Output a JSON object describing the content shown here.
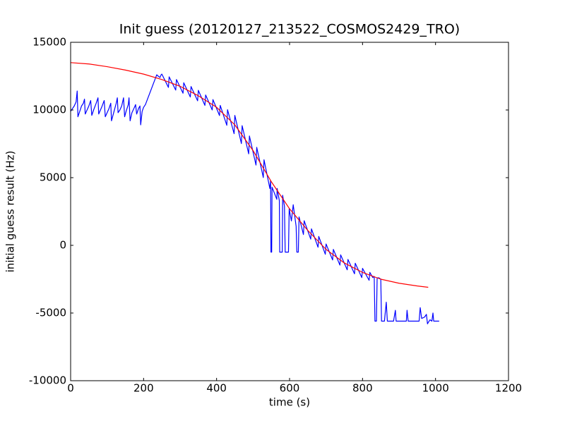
{
  "chart_data": {
    "type": "line",
    "title": "Init guess (20120127_213522_COSMOS2429_TRO)",
    "x_label": "time (s)",
    "y_label": "initial guess result (Hz)",
    "xlim": [
      0,
      1200
    ],
    "xticks": [
      0,
      200,
      400,
      600,
      800,
      1000,
      1200
    ],
    "ylim": [
      -10000,
      15000
    ],
    "yticks": [
      -10000,
      -5000,
      0,
      5000,
      10000,
      15000
    ],
    "series": [
      {
        "color": "#0000ff",
        "x": [
          0,
          5,
          10,
          15,
          18,
          20,
          25,
          30,
          35,
          38,
          40,
          45,
          50,
          55,
          58,
          63,
          70,
          75,
          77,
          85,
          92,
          95,
          100,
          105,
          110,
          112,
          118,
          125,
          128,
          130,
          135,
          140,
          145,
          148,
          152,
          158,
          160,
          163,
          168,
          175,
          178,
          181,
          186,
          190,
          192,
          196,
          200,
          205,
          236,
          240,
          245,
          248,
          250,
          268,
          270,
          288,
          290,
          308,
          310,
          328,
          330,
          348,
          350,
          368,
          370,
          388,
          390,
          408,
          410,
          428,
          430,
          448,
          450,
          468,
          470,
          488,
          490,
          508,
          510,
          528,
          530,
          546,
          548,
          549,
          551,
          552,
          565,
          566,
          572,
          573,
          580,
          581,
          586,
          588,
          597,
          599,
          605,
          610,
          618,
          620,
          624,
          626,
          638,
          640,
          658,
          660,
          678,
          680,
          698,
          700,
          718,
          720,
          738,
          740,
          758,
          760,
          778,
          780,
          798,
          800,
          818,
          820,
          828,
          832,
          834,
          838,
          840,
          845,
          850,
          852,
          860,
          865,
          868,
          885,
          890,
          892,
          920,
          922,
          925,
          955,
          958,
          962,
          970,
          975,
          978,
          980,
          985,
          990,
          993,
          995,
          1010
        ],
        "values": [
          9900,
          10100,
          10300,
          10600,
          11400,
          9500,
          9900,
          10300,
          10500,
          10800,
          9700,
          10000,
          10300,
          10700,
          9600,
          10000,
          10500,
          10900,
          9700,
          10200,
          10700,
          9500,
          9800,
          10100,
          10500,
          9200,
          9800,
          10500,
          10900,
          9800,
          10000,
          10300,
          10900,
          9500,
          9900,
          10400,
          10900,
          9200,
          9800,
          10200,
          10400,
          9700,
          10100,
          10300,
          8900,
          9900,
          10200,
          10400,
          12600,
          12500,
          12400,
          12600,
          12650,
          11670,
          12450,
          11470,
          12250,
          11240,
          12010,
          10960,
          11730,
          10680,
          11450,
          10340,
          11110,
          10000,
          10770,
          9590,
          10340,
          8870,
          10020,
          8250,
          9600,
          7520,
          8840,
          6760,
          8080,
          5930,
          7240,
          5010,
          6320,
          4200,
          4800,
          -500,
          -500,
          4300,
          3400,
          4200,
          3300,
          -500,
          -500,
          3700,
          2900,
          -500,
          -500,
          2700,
          1800,
          3000,
          1400,
          -500,
          -500,
          2100,
          800,
          1820,
          460,
          1220,
          -140,
          660,
          -660,
          100,
          -1080,
          -300,
          -1460,
          -700,
          -1810,
          -1040,
          -2100,
          -1320,
          -2380,
          -1700,
          -2580,
          -2000,
          -2380,
          -2300,
          -5600,
          -5600,
          -2400,
          -2400,
          -2500,
          -5600,
          -5600,
          -4200,
          -5600,
          -5600,
          -4800,
          -5600,
          -5600,
          -4800,
          -5600,
          -5600,
          -4600,
          -5400,
          -5300,
          -5100,
          -5800,
          -5700,
          -5500,
          -5600,
          -5000,
          -5600,
          -5600
        ]
      },
      {
        "color": "#ff0000",
        "x": [
          0,
          50,
          100,
          150,
          200,
          250,
          300,
          350,
          400,
          450,
          500,
          550,
          600,
          650,
          700,
          750,
          800,
          850,
          900,
          950,
          980
        ],
        "values": [
          13500,
          13400,
          13200,
          12950,
          12650,
          12250,
          11750,
          11050,
          10200,
          8900,
          7000,
          4700,
          2700,
          1100,
          -300,
          -1300,
          -2000,
          -2500,
          -2800,
          -3000,
          -3100
        ]
      }
    ]
  }
}
